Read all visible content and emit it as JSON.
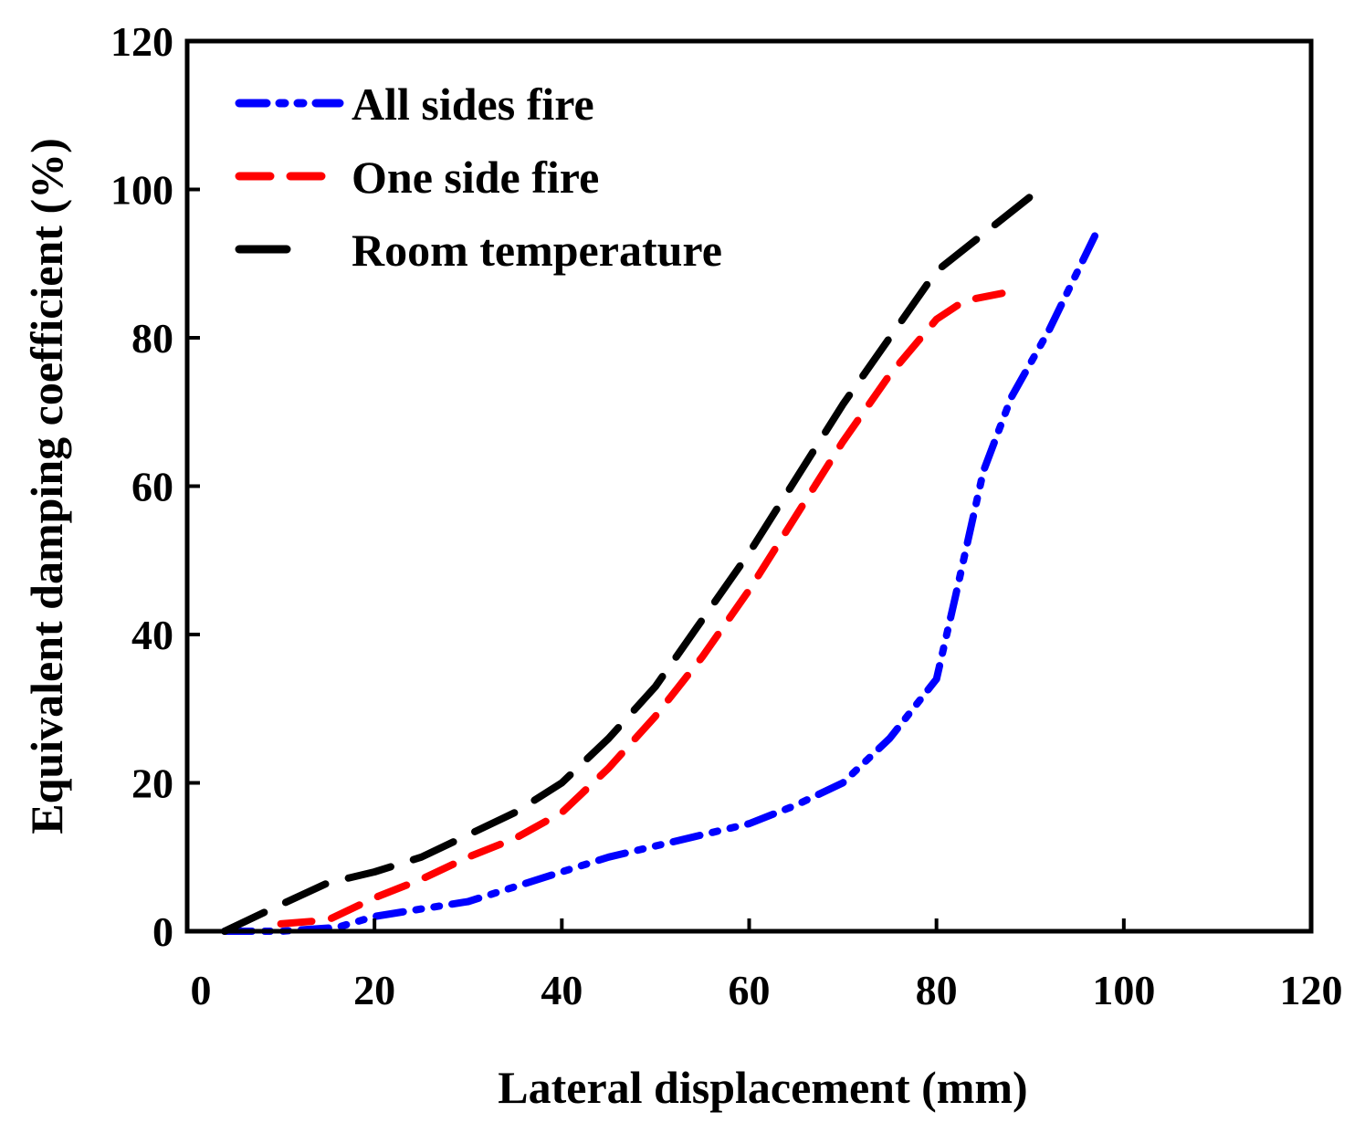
{
  "chart_data": {
    "type": "line",
    "title": "",
    "xlabel": "Lateral displacement (mm)",
    "ylabel": "Equivalent damping coefficient (%)",
    "xlim": [
      0,
      120
    ],
    "ylim": [
      0,
      120
    ],
    "xticks": [
      "0",
      "20",
      "40",
      "60",
      "80",
      "100",
      "120"
    ],
    "yticks": [
      "0",
      "20",
      "40",
      "60",
      "80",
      "100",
      "120"
    ],
    "grid": false,
    "legend_position": "top-left",
    "series": [
      {
        "name": "All sides fire",
        "color": "#0000ff",
        "dash": "dash-dot-dot",
        "x": [
          4,
          10,
          16,
          20,
          25,
          30,
          35,
          40,
          45,
          50,
          55,
          60,
          65,
          70,
          75,
          80,
          82,
          85,
          88,
          92,
          97
        ],
        "y": [
          0,
          0,
          0.5,
          2,
          3,
          4,
          6,
          8,
          10,
          11.5,
          13,
          14.5,
          17,
          20,
          26,
          34,
          45,
          62,
          72,
          81,
          94
        ]
      },
      {
        "name": "One side fire",
        "color": "#ff0000",
        "dash": "dash",
        "x": [
          10,
          15,
          20,
          25,
          30,
          35,
          40,
          45,
          50,
          55,
          60,
          65,
          70,
          75,
          80,
          83,
          87
        ],
        "y": [
          1,
          1.5,
          4.5,
          7,
          10,
          12.5,
          16,
          22,
          29,
          37,
          46,
          56,
          66,
          75,
          82.5,
          85,
          86
        ]
      },
      {
        "name": "Room temperature",
        "color": "#000000",
        "dash": "long-dash",
        "x": [
          4,
          9,
          15,
          20,
          25,
          30,
          35,
          40,
          45,
          50,
          55,
          60,
          65,
          70,
          75,
          80,
          85,
          90
        ],
        "y": [
          0,
          3,
          6.5,
          8,
          10,
          13,
          16,
          20,
          26,
          33,
          42,
          51,
          61,
          71,
          80,
          89,
          94,
          99
        ]
      }
    ]
  }
}
